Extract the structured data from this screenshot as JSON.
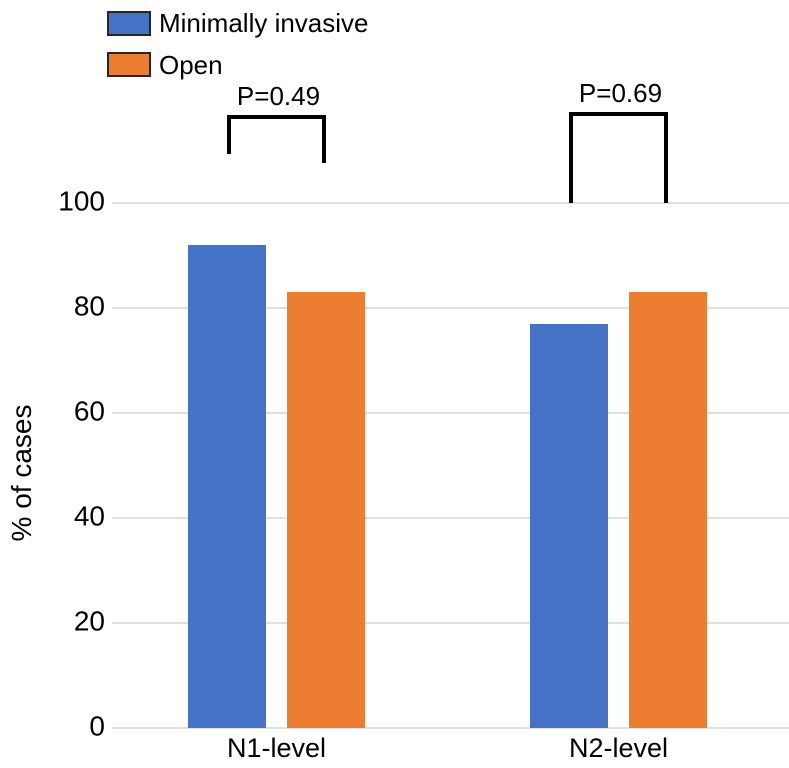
{
  "legend": {
    "items": [
      {
        "label": "Minimally invasive",
        "color": "#4472c4"
      },
      {
        "label": "Open",
        "color": "#ed7d31"
      }
    ]
  },
  "chart_data": {
    "type": "bar",
    "title": "",
    "categories": [
      "N1-level",
      "N2-level"
    ],
    "series": [
      {
        "name": "Minimally invasive",
        "color": "#4472c4",
        "values": [
          92,
          77
        ]
      },
      {
        "name": "Open",
        "color": "#ed7d31",
        "values": [
          83,
          83
        ]
      }
    ],
    "xlabel": "",
    "ylabel": "% of cases",
    "ylim": [
      0,
      100
    ],
    "yticks": [
      0,
      20,
      40,
      60,
      80,
      100
    ],
    "grid": "horizontal",
    "legend_position": "top-left",
    "annotations": [
      {
        "label": "P=0.49",
        "category": "N1-level"
      },
      {
        "label": "P=0.69",
        "category": "N2-level"
      }
    ],
    "colors": {
      "gridline": "#e0e0e0",
      "bracket": "#000000",
      "text": "#000000",
      "background": "#ffffff"
    }
  }
}
